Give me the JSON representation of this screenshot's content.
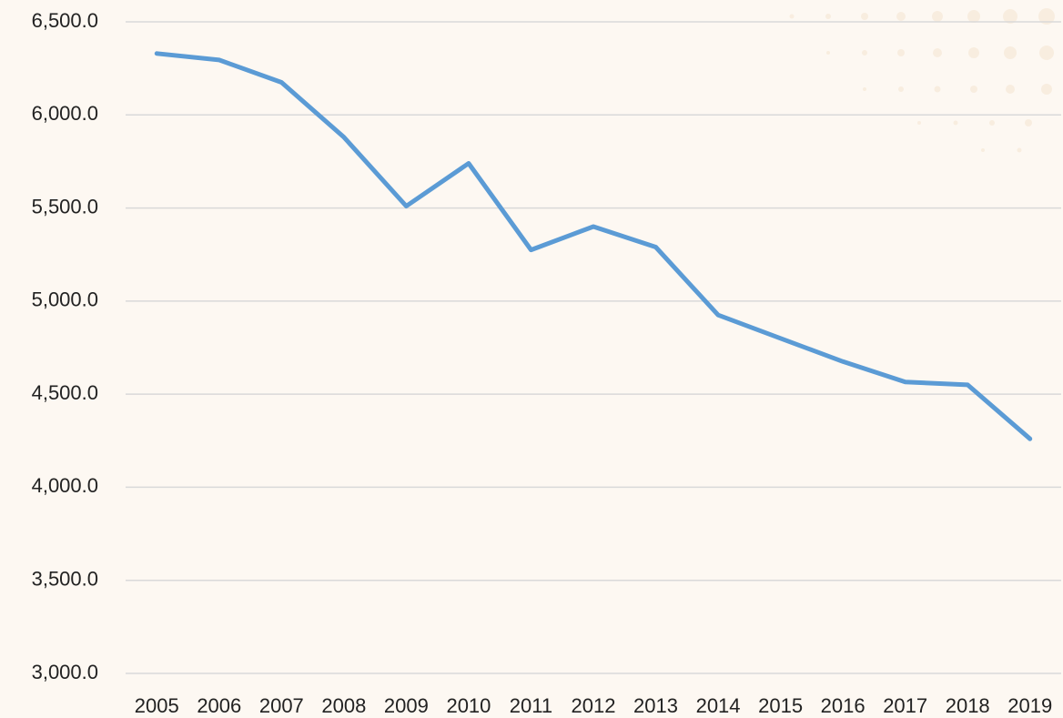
{
  "chart_data": {
    "type": "line",
    "categories": [
      "2005",
      "2006",
      "2007",
      "2008",
      "2009",
      "2010",
      "2011",
      "2012",
      "2013",
      "2014",
      "2015",
      "2016",
      "2017",
      "2018",
      "2019"
    ],
    "series": [
      {
        "color": "#5b9bd5",
        "values": [
          6330,
          6295,
          6175,
          5880,
          5510,
          5740,
          5275,
          5400,
          5290,
          4925,
          4800,
          4675,
          4565,
          4550,
          4260
        ]
      }
    ],
    "ylim": [
      3000,
      6500
    ],
    "yticks": [
      {
        "value": 3000,
        "label": "3,000.0"
      },
      {
        "value": 3500,
        "label": "3,500.0"
      },
      {
        "value": 4000,
        "label": "4,000.0"
      },
      {
        "value": 4500,
        "label": "4,500.0"
      },
      {
        "value": 5000,
        "label": "5,000.0"
      },
      {
        "value": 5500,
        "label": "5,500.0"
      },
      {
        "value": 6000,
        "label": "6,000.0"
      },
      {
        "value": 6500,
        "label": "6,500.0"
      }
    ],
    "grid": true
  }
}
